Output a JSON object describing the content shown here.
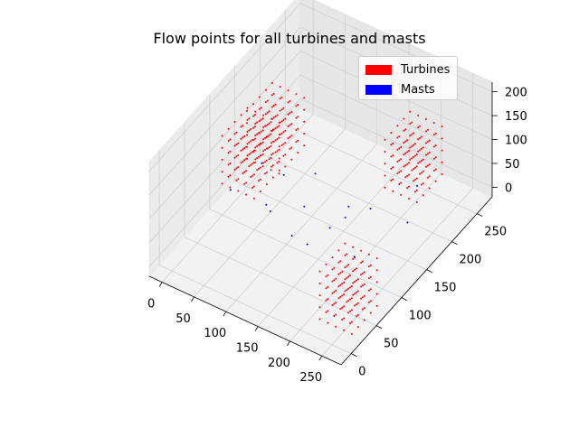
{
  "chart_data": {
    "type": "scatter",
    "title": "Flow points for all turbines and masts",
    "xlabel": "",
    "ylabel": "",
    "zlabel": "",
    "xlim": [
      -20,
      280
    ],
    "ylim": [
      -20,
      280
    ],
    "zlim": [
      -20,
      220
    ],
    "x_ticks": [
      0,
      50,
      100,
      150,
      200,
      250
    ],
    "y_ticks": [
      0,
      50,
      100,
      150,
      200,
      250
    ],
    "z_ticks": [
      0,
      50,
      100,
      150,
      200
    ],
    "grid": true,
    "legend_position": "top-right",
    "colors": {
      "turbines": "#ff0000",
      "masts": "#0000ff"
    },
    "series": [
      {
        "name": "Turbines",
        "color": "#ff0000",
        "marker": "point",
        "description": "Four cubic lattices of flow points, one per turbine",
        "clusters": [
          {
            "center": [
              20,
              180,
              80
            ],
            "x_range": [
              -5,
              45
            ],
            "y_range": [
              155,
              205
            ],
            "z_range": [
              30,
              130
            ],
            "points_per_axis": 5
          },
          {
            "center": [
              60,
              80,
              170
            ],
            "x_range": [
              35,
              85
            ],
            "y_range": [
              55,
              105
            ],
            "z_range": [
              120,
              220
            ],
            "points_per_axis": 5
          },
          {
            "center": [
              220,
              200,
              120
            ],
            "x_range": [
              195,
              245
            ],
            "y_range": [
              175,
              225
            ],
            "z_range": [
              70,
              170
            ],
            "points_per_axis": 5
          },
          {
            "center": [
              260,
              20,
              80
            ],
            "x_range": [
              235,
              285
            ],
            "y_range": [
              -5,
              45
            ],
            "z_range": [
              30,
              130
            ],
            "points_per_axis": 5
          }
        ]
      },
      {
        "name": "Masts",
        "color": "#0000ff",
        "marker": "point",
        "points": [
          [
            30,
            140,
            60
          ],
          [
            80,
            120,
            90
          ],
          [
            120,
            110,
            60
          ],
          [
            100,
            60,
            110
          ],
          [
            160,
            110,
            40
          ],
          [
            140,
            60,
            70
          ],
          [
            200,
            140,
            70
          ],
          [
            200,
            90,
            110
          ],
          [
            180,
            40,
            100
          ],
          [
            230,
            70,
            70
          ],
          [
            90,
            170,
            40
          ],
          [
            150,
            160,
            20
          ],
          [
            60,
            40,
            140
          ],
          [
            250,
            150,
            60
          ],
          [
            210,
            220,
            30
          ],
          [
            130,
            30,
            150
          ]
        ]
      }
    ]
  }
}
